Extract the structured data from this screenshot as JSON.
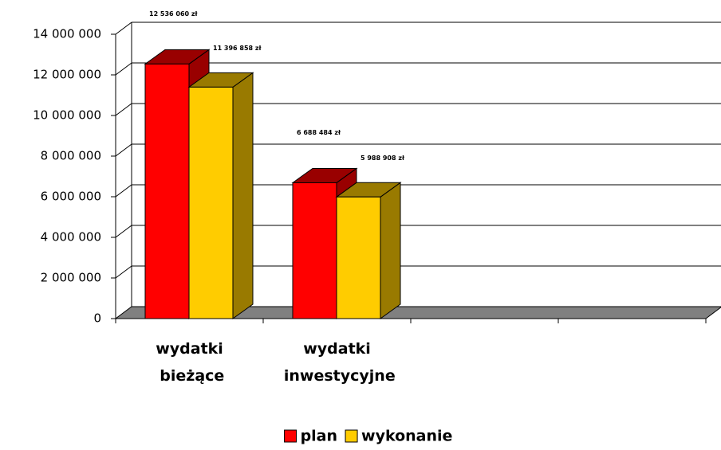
{
  "chart_data": {
    "type": "bar3d",
    "categories": [
      "wydatki bieżące",
      "wydatki inwestycyjne",
      null,
      null
    ],
    "series": [
      {
        "name": "plan",
        "color": "#ff0000",
        "side": "#990000",
        "values": [
          12536060,
          6688484,
          null,
          null
        ],
        "value_labels": [
          "12 536 060 zł",
          "6 688 484 zł",
          null,
          null
        ]
      },
      {
        "name": "wykonanie",
        "color": "#ffcc00",
        "side": "#997a00",
        "values": [
          11396858,
          5988908,
          null,
          null
        ],
        "value_labels": [
          "11 396 858 zł",
          "5 988 908 zł",
          null,
          null
        ]
      }
    ],
    "ylim": [
      0,
      14000000
    ],
    "yticks": [
      0,
      {
        "value": 2000000,
        "label": "2 000 000"
      },
      {
        "value": 4000000,
        "label": "4 000 000"
      },
      {
        "value": 6000000,
        "label": "6 000 000"
      },
      {
        "value": 8000000,
        "label": "8 000 000"
      },
      {
        "value": 10000000,
        "label": "10 000 000"
      },
      {
        "value": 12000000,
        "label": "12 000 000"
      },
      {
        "value": 14000000,
        "label": "14 000 000"
      }
    ],
    "grid": true,
    "legend": "bottom"
  }
}
